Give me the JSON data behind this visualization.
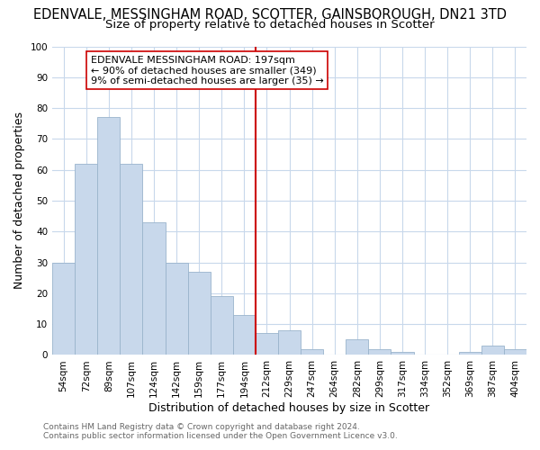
{
  "title": "EDENVALE, MESSINGHAM ROAD, SCOTTER, GAINSBOROUGH, DN21 3TD",
  "subtitle": "Size of property relative to detached houses in Scotter",
  "xlabel": "Distribution of detached houses by size in Scotter",
  "ylabel": "Number of detached properties",
  "bar_labels": [
    "54sqm",
    "72sqm",
    "89sqm",
    "107sqm",
    "124sqm",
    "142sqm",
    "159sqm",
    "177sqm",
    "194sqm",
    "212sqm",
    "229sqm",
    "247sqm",
    "264sqm",
    "282sqm",
    "299sqm",
    "317sqm",
    "334sqm",
    "352sqm",
    "369sqm",
    "387sqm",
    "404sqm"
  ],
  "bar_values": [
    30,
    62,
    77,
    62,
    43,
    30,
    27,
    19,
    13,
    7,
    8,
    2,
    0,
    5,
    2,
    1,
    0,
    0,
    1,
    3,
    2
  ],
  "bar_color": "#c8d8eb",
  "bar_edge_color": "#9ab4cc",
  "vline_x_index": 8,
  "vline_color": "#cc0000",
  "ylim": [
    0,
    100
  ],
  "annotation_title": "EDENVALE MESSINGHAM ROAD: 197sqm",
  "annotation_line1": "← 90% of detached houses are smaller (349)",
  "annotation_line2": "9% of semi-detached houses are larger (35) →",
  "footer1": "Contains HM Land Registry data © Crown copyright and database right 2024.",
  "footer2": "Contains public sector information licensed under the Open Government Licence v3.0.",
  "background_color": "#ffffff",
  "grid_color": "#c8d8eb",
  "title_fontsize": 10.5,
  "subtitle_fontsize": 9.5,
  "axis_label_fontsize": 9,
  "tick_fontsize": 7.5,
  "footer_fontsize": 6.5,
  "ann_fontsize": 8
}
